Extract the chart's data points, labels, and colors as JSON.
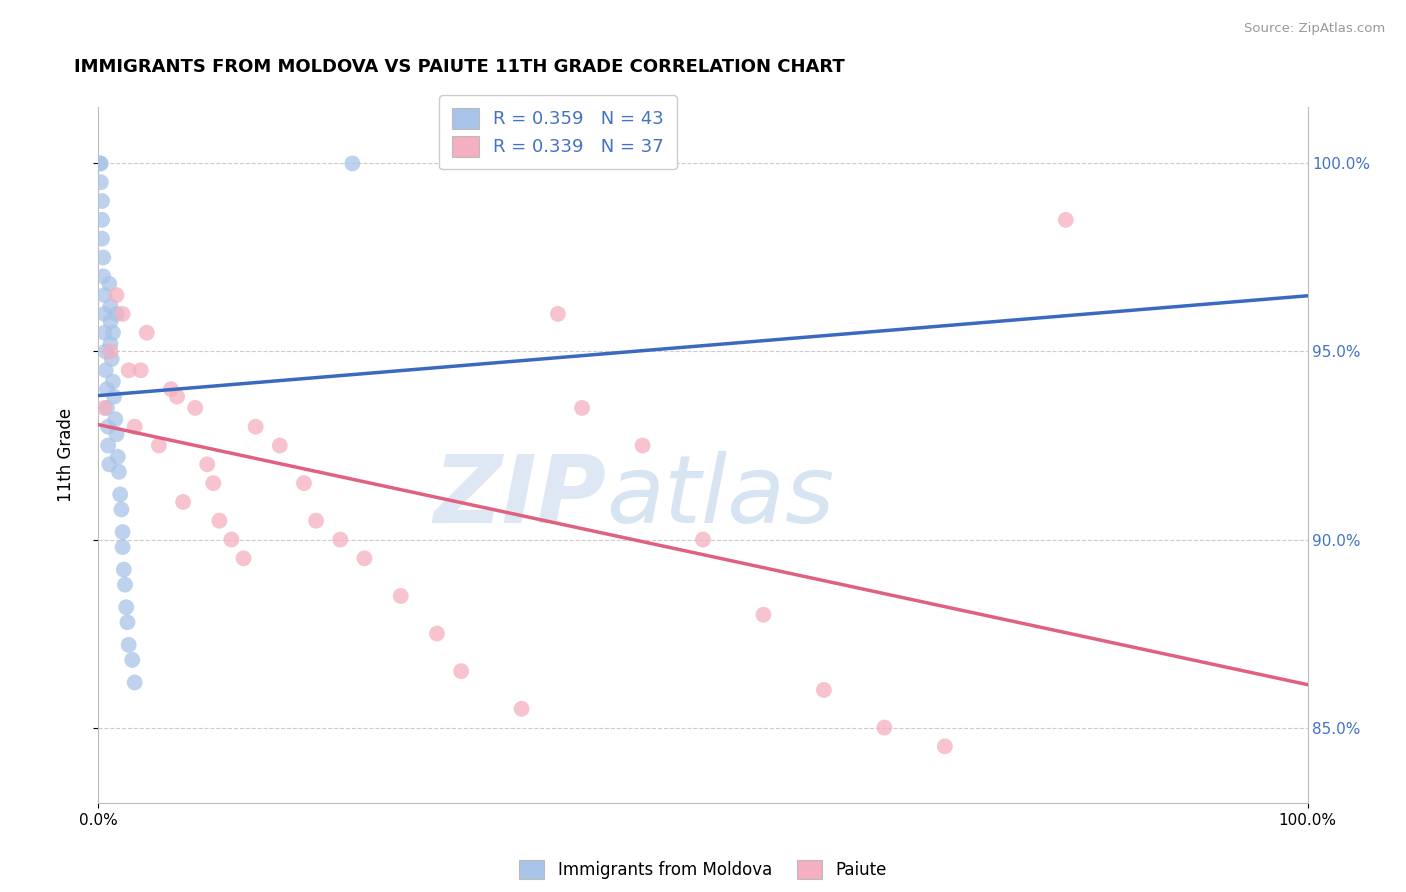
{
  "title": "IMMIGRANTS FROM MOLDOVA VS PAIUTE 11TH GRADE CORRELATION CHART",
  "source_text": "Source: ZipAtlas.com",
  "ylabel": "11th Grade",
  "legend_bottom": [
    "Immigrants from Moldova",
    "Paiute"
  ],
  "r_blue": 0.359,
  "n_blue": 43,
  "r_pink": 0.339,
  "n_pink": 37,
  "blue_color": "#a8c4e8",
  "pink_color": "#f4afc0",
  "blue_line_color": "#3a6abf",
  "pink_line_color": "#e06080",
  "watermark_zip": "ZIP",
  "watermark_atlas": "atlas",
  "blue_dots_x": [
    0.1,
    0.2,
    0.2,
    0.3,
    0.3,
    0.3,
    0.4,
    0.4,
    0.5,
    0.5,
    0.5,
    0.6,
    0.6,
    0.7,
    0.7,
    0.8,
    0.8,
    0.9,
    0.9,
    1.0,
    1.0,
    1.0,
    1.1,
    1.2,
    1.2,
    1.3,
    1.4,
    1.5,
    1.5,
    1.6,
    1.7,
    1.8,
    1.9,
    2.0,
    2.0,
    2.1,
    2.2,
    2.3,
    2.4,
    2.5,
    2.8,
    3.0,
    21.0
  ],
  "blue_dots_y": [
    100.0,
    100.0,
    99.5,
    99.0,
    98.5,
    98.0,
    97.5,
    97.0,
    96.5,
    96.0,
    95.5,
    95.0,
    94.5,
    94.0,
    93.5,
    93.0,
    92.5,
    92.0,
    96.8,
    96.2,
    95.8,
    95.2,
    94.8,
    94.2,
    95.5,
    93.8,
    93.2,
    92.8,
    96.0,
    92.2,
    91.8,
    91.2,
    90.8,
    90.2,
    89.8,
    89.2,
    88.8,
    88.2,
    87.8,
    87.2,
    86.8,
    86.2,
    100.0
  ],
  "pink_dots_x": [
    0.5,
    1.0,
    1.5,
    2.0,
    2.5,
    3.0,
    4.0,
    5.0,
    6.0,
    7.0,
    8.0,
    9.0,
    10.0,
    11.0,
    12.0,
    13.0,
    15.0,
    17.0,
    20.0,
    22.0,
    25.0,
    28.0,
    30.0,
    35.0,
    40.0,
    45.0,
    50.0,
    55.0,
    60.0,
    65.0,
    70.0,
    3.5,
    6.5,
    9.5,
    18.0,
    38.0,
    80.0
  ],
  "pink_dots_y": [
    93.5,
    95.0,
    96.5,
    96.0,
    94.5,
    93.0,
    95.5,
    92.5,
    94.0,
    91.0,
    93.5,
    92.0,
    90.5,
    90.0,
    89.5,
    93.0,
    92.5,
    91.5,
    90.0,
    89.5,
    88.5,
    87.5,
    86.5,
    85.5,
    93.5,
    92.5,
    90.0,
    88.0,
    86.0,
    85.0,
    84.5,
    94.5,
    93.8,
    91.5,
    90.5,
    96.0,
    98.5
  ],
  "xmin": 0.0,
  "xmax": 100.0,
  "ymin": 83.0,
  "ymax": 101.5,
  "yticks": [
    85.0,
    90.0,
    95.0,
    100.0
  ],
  "ytick_labels": [
    "85.0%",
    "90.0%",
    "95.0%",
    "100.0%"
  ],
  "xtick_labels": [
    "0.0%",
    "100.0%"
  ],
  "grid_color": "#cccccc",
  "background_color": "#ffffff",
  "right_axis_color": "#4472c4"
}
